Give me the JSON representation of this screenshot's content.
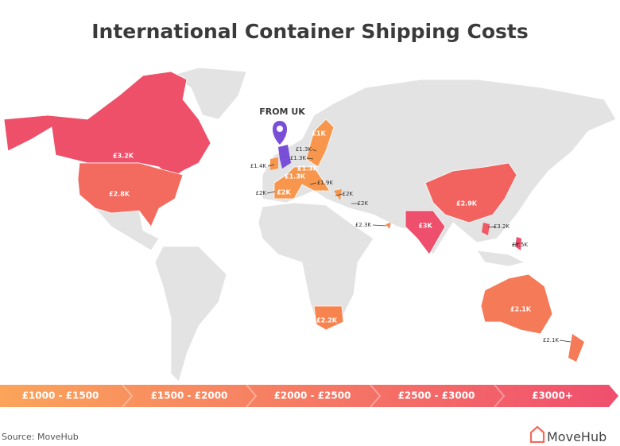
{
  "title": "International Container Shipping Costs",
  "origin_label": "FROM UK",
  "cost_labels": [
    "£3.2K",
    "£2.8K",
    "£1.4K",
    "£1.3K",
    "£1.3K",
    "£1K",
    "£1.3K",
    "£1.3K",
    "£2K",
    "£2K",
    "£1.9K",
    "£2K",
    "£2K",
    "£2.3K",
    "£3K",
    "£2.9K",
    "£3.2K",
    "£3.5K",
    "£2.2K",
    "£2.1K",
    "£2.1K"
  ],
  "legend": [
    "£1000 - £1500",
    "£1500 - £2000",
    "£2000 - £2500",
    "£2500 - £3000",
    "£3000+"
  ],
  "source": "Source: MoveHub",
  "brand": "MoveHub"
}
